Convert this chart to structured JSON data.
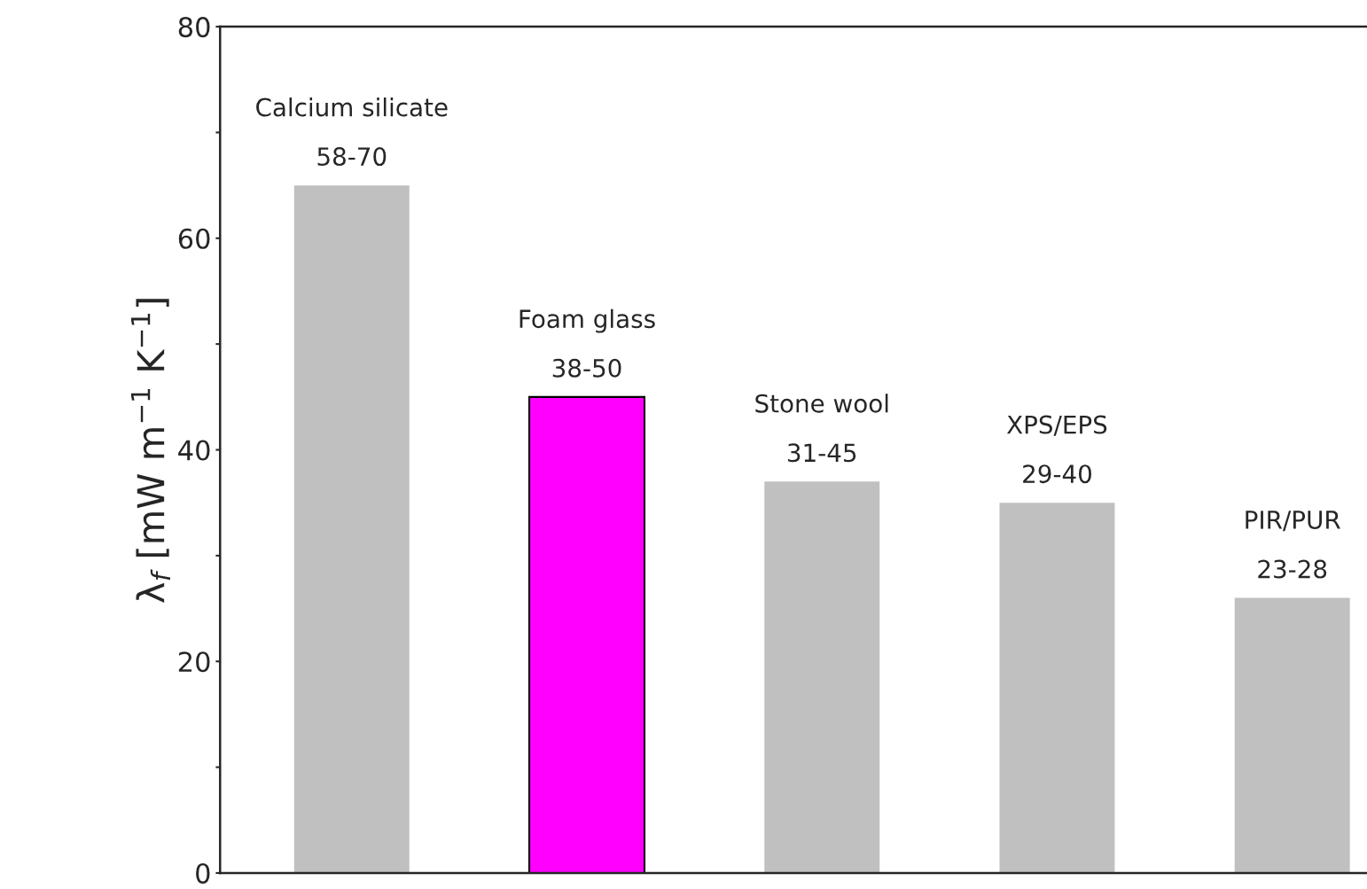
{
  "chart_data": {
    "type": "bar",
    "ylabel": "λ$_{f}$ [mW m$^{−1}$ K$^{−1}$]",
    "categories": [
      "Calcium silicate",
      "Foam glass",
      "Stone wool",
      "XPS/EPS",
      "PIR/PUR"
    ],
    "values": [
      65,
      45,
      37,
      35,
      26
    ],
    "value_labels": [
      "58-70",
      "38-50",
      "31-45",
      "29-40",
      "23-28"
    ],
    "colors": [
      "#c0c0c0",
      "#ff00ff",
      "#c0c0c0",
      "#c0c0c0",
      "#c0c0c0"
    ],
    "ylim": [
      0,
      80
    ],
    "yticks": [
      0,
      {
        "value": 10,
        "label": null
      },
      20,
      {
        "value": 30,
        "label": null
      },
      40,
      {
        "value": 50,
        "label": null
      },
      60,
      {
        "value": 70,
        "label": null
      },
      80
    ],
    "grid": false,
    "legend": false
  }
}
